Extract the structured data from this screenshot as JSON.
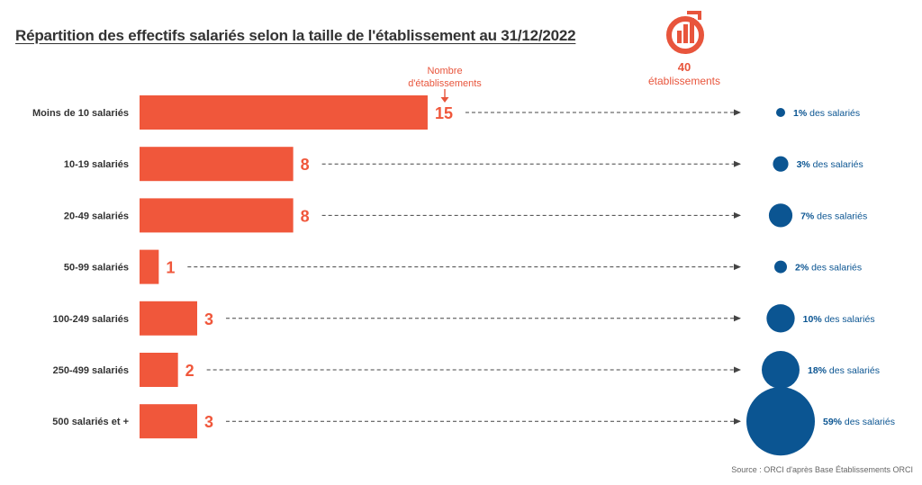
{
  "title": "Répartition des effectifs salariés selon la taille de l'établissement au 31/12/2022",
  "total": {
    "value": "40",
    "label": "établissements"
  },
  "annotation": {
    "line1": "Nombre",
    "line2": "d'établissements"
  },
  "source": "Source : ORCI d'après Base Établissements ORCI",
  "colors": {
    "bar": "#f0573b",
    "bubble": "#0b5592",
    "label": "#333333",
    "arrow": "#444444"
  },
  "icon": "chart-logo-icon",
  "chart_data": {
    "type": "bar",
    "orientation": "horizontal",
    "categories": [
      "Moins de 10 salariés",
      "10-19 salariés",
      "20-49 salariés",
      "50-99 salariés",
      "100-249 salariés",
      "250-499 salariés",
      "500 salariés et +"
    ],
    "values": [
      15,
      8,
      8,
      1,
      3,
      2,
      3
    ],
    "value_labels": [
      "15",
      "8",
      "8",
      "1",
      "3",
      "2",
      "3"
    ],
    "bubbles": {
      "values": [
        1,
        3,
        7,
        2,
        10,
        18,
        59
      ],
      "pct_labels": [
        "1%",
        "3%",
        "7%",
        "2%",
        "10%",
        "18%",
        "59%"
      ],
      "suffix": " des salariés"
    }
  }
}
